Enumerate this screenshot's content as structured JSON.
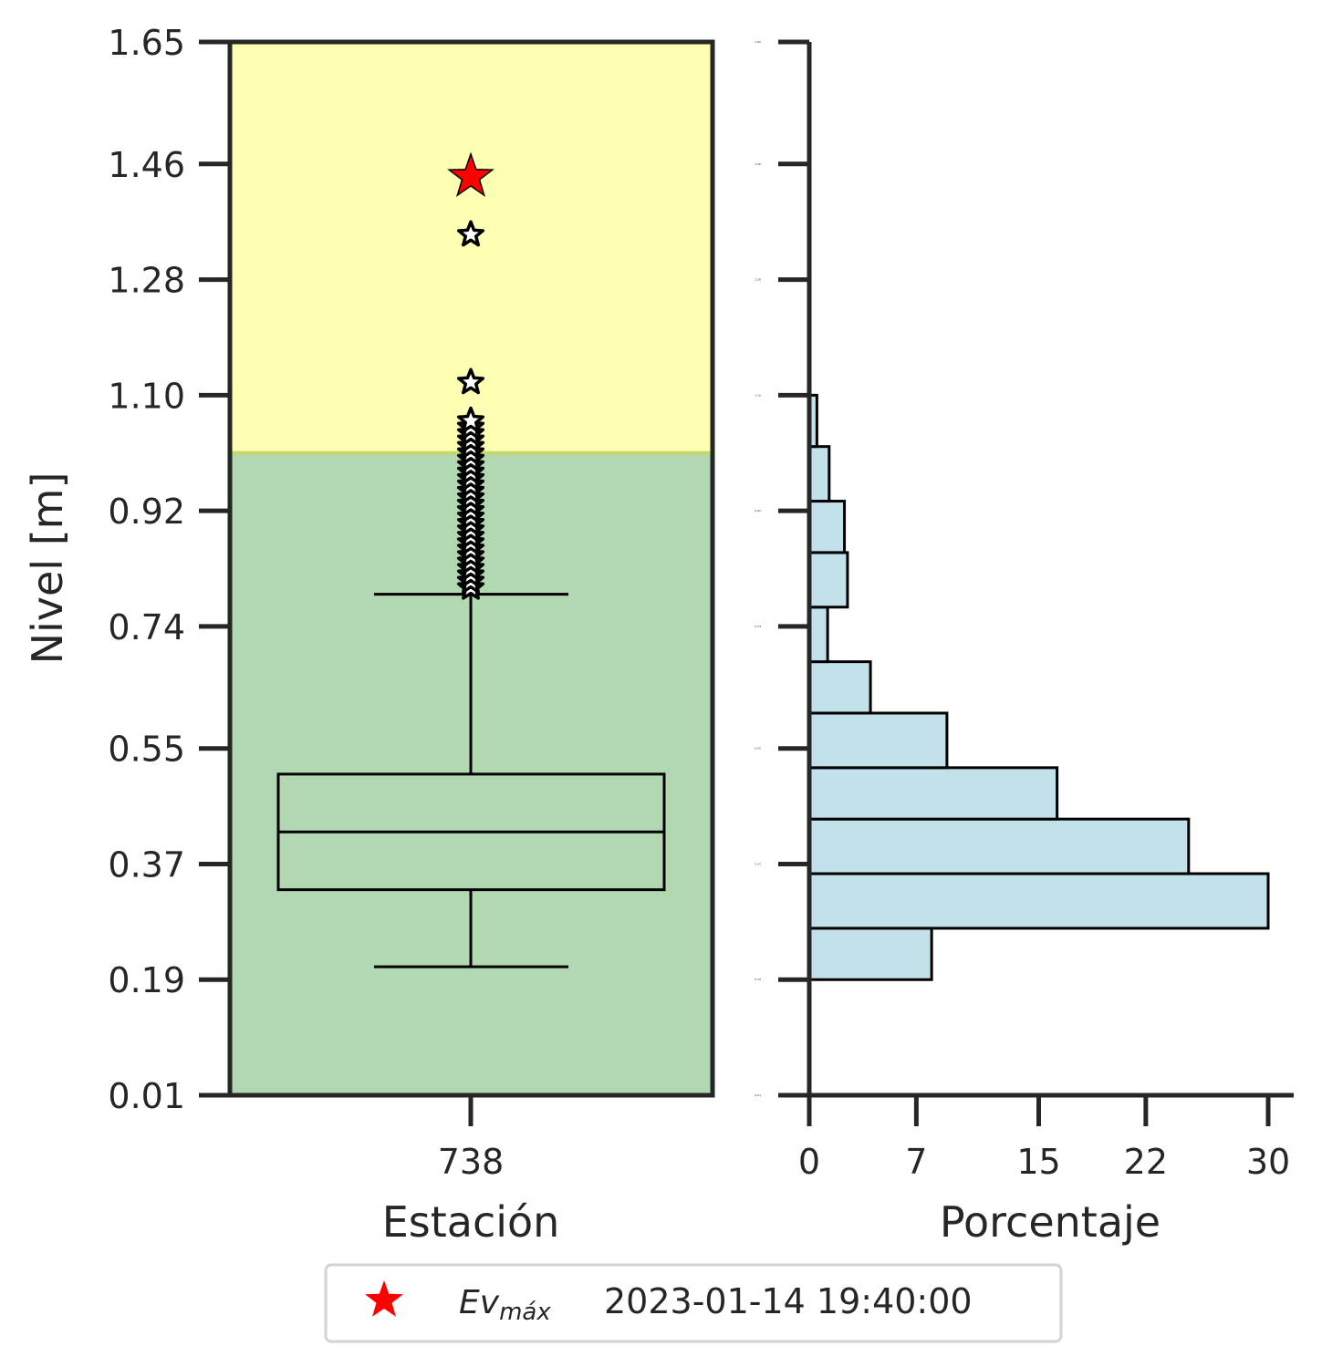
{
  "chart_data": [
    {
      "type": "box",
      "xlabel": "Estación",
      "ylabel": "Nivel [m]",
      "categories": [
        "738"
      ],
      "ylim": [
        0.01,
        1.65
      ],
      "yticks": [
        "0.01",
        "0.19",
        "0.37",
        "0.55",
        "0.74",
        "0.92",
        "1.10",
        "1.28",
        "1.46",
        "1.65"
      ],
      "bands": [
        {
          "from": 0.01,
          "to": 1.01,
          "color": "#b2d8b2"
        },
        {
          "from": 1.01,
          "to": 1.65,
          "color": "#fdffb2"
        }
      ],
      "box": {
        "whisker_low": 0.21,
        "q1": 0.33,
        "median": 0.42,
        "q3": 0.51,
        "whisker_high": 0.79
      },
      "outliers": [
        0.8,
        0.81,
        0.82,
        0.83,
        0.84,
        0.85,
        0.86,
        0.87,
        0.88,
        0.89,
        0.9,
        0.91,
        0.92,
        0.93,
        0.94,
        0.95,
        0.96,
        0.97,
        0.98,
        0.99,
        1.0,
        1.01,
        1.02,
        1.03,
        1.04,
        1.05,
        1.06,
        1.12,
        1.35
      ],
      "max_event": {
        "value": 1.44,
        "color": "#ff0000"
      }
    },
    {
      "type": "bar",
      "orientation": "horizontal",
      "xlabel": "Porcentaje",
      "xlim": [
        0,
        30
      ],
      "xticks": [
        "0",
        "7",
        "15",
        "22",
        "30"
      ],
      "bar_color": "#c3e1eb",
      "bins": [
        {
          "from": 0.19,
          "to": 0.27,
          "value": 8.0
        },
        {
          "from": 0.27,
          "to": 0.355,
          "value": 30.0
        },
        {
          "from": 0.355,
          "to": 0.44,
          "value": 24.8
        },
        {
          "from": 0.44,
          "to": 0.52,
          "value": 16.2
        },
        {
          "from": 0.52,
          "to": 0.605,
          "value": 9.0
        },
        {
          "from": 0.605,
          "to": 0.685,
          "value": 4.0
        },
        {
          "from": 0.685,
          "to": 0.77,
          "value": 1.2
        },
        {
          "from": 0.77,
          "to": 0.855,
          "value": 2.5
        },
        {
          "from": 0.855,
          "to": 0.935,
          "value": 2.3
        },
        {
          "from": 0.935,
          "to": 1.02,
          "value": 1.3
        },
        {
          "from": 1.02,
          "to": 1.1,
          "value": 0.5
        }
      ],
      "yticks_tiny": [
        "0.01",
        "0.19",
        "0.37",
        "0.55",
        "0.74",
        "0.92",
        "1.10",
        "1.28",
        "1.46",
        "1.65"
      ]
    }
  ],
  "legend": {
    "ev_main": "Ev",
    "ev_sub": "máx",
    "date": "2023-01-14 19:40:00"
  }
}
